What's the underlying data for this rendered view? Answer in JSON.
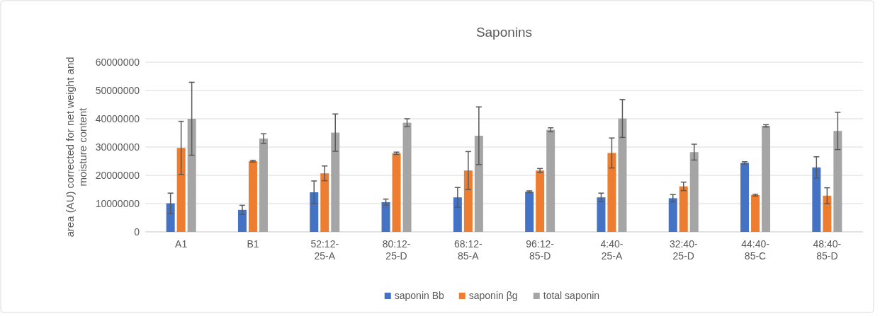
{
  "chart_data": {
    "type": "bar",
    "title": "Saponins",
    "ylabel": "area (AU) corrected for net weight and moisture content",
    "categories": [
      "A1",
      "B1",
      "52:12-25-A",
      "80:12-25-D",
      "68:12-85-A",
      "96:12-85-D",
      "4:40-25-A",
      "32:40-25-D",
      "44:40-85-C",
      "48:40-85-D"
    ],
    "series": [
      {
        "name": "saponin Bb",
        "color": "#4472c4",
        "values": [
          10100000,
          7800000,
          14000000,
          10500000,
          12200000,
          14200000,
          12200000,
          11900000,
          24400000,
          22800000
        ],
        "errors": [
          3600000,
          1600000,
          4000000,
          1100000,
          3500000,
          300000,
          1500000,
          1300000,
          400000,
          3750000
        ]
      },
      {
        "name": "saponin βg",
        "color": "#ed7d31",
        "values": [
          29700000,
          25000000,
          20700000,
          27800000,
          21700000,
          21700000,
          27900000,
          16100000,
          13000000,
          12800000
        ],
        "errors": [
          9400000,
          300000,
          2600000,
          400000,
          6700000,
          700000,
          5300000,
          1500000,
          300000,
          2800000
        ]
      },
      {
        "name": "total saponin",
        "color": "#a5a5a5",
        "values": [
          40000000,
          33000000,
          35100000,
          38600000,
          34000000,
          36100000,
          40100000,
          28200000,
          37500000,
          35700000
        ],
        "errors": [
          12900000,
          1700000,
          6600000,
          1400000,
          10200000,
          700000,
          6700000,
          2800000,
          400000,
          6600000
        ]
      }
    ],
    "ylim": [
      0,
      60000000
    ],
    "yticks": [
      0,
      10000000,
      20000000,
      30000000,
      40000000,
      50000000,
      60000000
    ],
    "grid": "y",
    "legend": "bottom"
  }
}
